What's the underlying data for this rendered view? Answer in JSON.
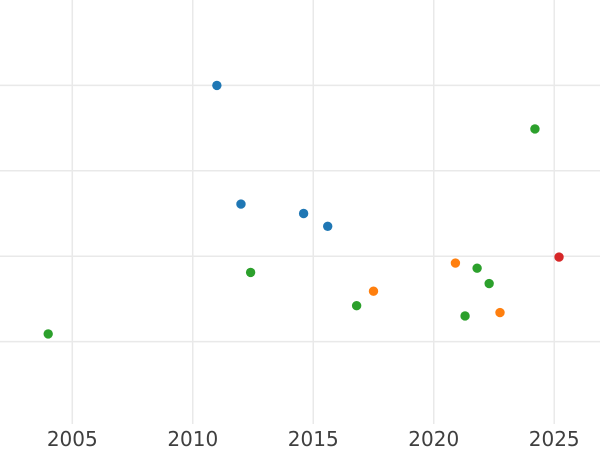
{
  "chart_data": {
    "type": "scatter",
    "title": "",
    "xlabel": "",
    "ylabel": "",
    "x_range": [
      2002.0,
      2026.9
    ],
    "y_range": [
      0,
      5
    ],
    "x_ticks": [
      {
        "value": 2005,
        "label": "2005"
      },
      {
        "value": 2010,
        "label": "2010"
      },
      {
        "value": 2015,
        "label": "2015"
      },
      {
        "value": 2020,
        "label": "2020"
      },
      {
        "value": 2025,
        "label": "2025"
      }
    ],
    "y_gridlines": [
      1,
      2,
      3,
      4
    ],
    "y_tick_labels_visible": false,
    "grid": true,
    "legend_position": "none",
    "marker": {
      "shape": "circle",
      "radius_px": 4.7
    },
    "series": [
      {
        "name": "blue-series",
        "color": "#1f77b4",
        "points": [
          {
            "x": 2011.0,
            "y": 4.0
          },
          {
            "x": 2012.0,
            "y": 2.61
          },
          {
            "x": 2014.6,
            "y": 2.5
          },
          {
            "x": 2015.6,
            "y": 2.35
          }
        ]
      },
      {
        "name": "green-series",
        "color": "#2ca02c",
        "points": [
          {
            "x": 2004.0,
            "y": 1.09
          },
          {
            "x": 2012.4,
            "y": 1.81
          },
          {
            "x": 2016.8,
            "y": 1.42
          },
          {
            "x": 2021.3,
            "y": 1.3
          },
          {
            "x": 2021.8,
            "y": 1.86
          },
          {
            "x": 2022.3,
            "y": 1.68
          },
          {
            "x": 2024.2,
            "y": 3.49
          }
        ]
      },
      {
        "name": "orange-series",
        "color": "#ff7f0e",
        "points": [
          {
            "x": 2017.5,
            "y": 1.59
          },
          {
            "x": 2020.9,
            "y": 1.92
          },
          {
            "x": 2022.75,
            "y": 1.34
          }
        ]
      },
      {
        "name": "red-series",
        "color": "#d62728",
        "points": [
          {
            "x": 2025.2,
            "y": 1.99
          }
        ]
      }
    ]
  },
  "colors": {
    "background": "#ffffff",
    "gridline": "#e9e9e9",
    "tick_label": "#3f3f3f"
  }
}
